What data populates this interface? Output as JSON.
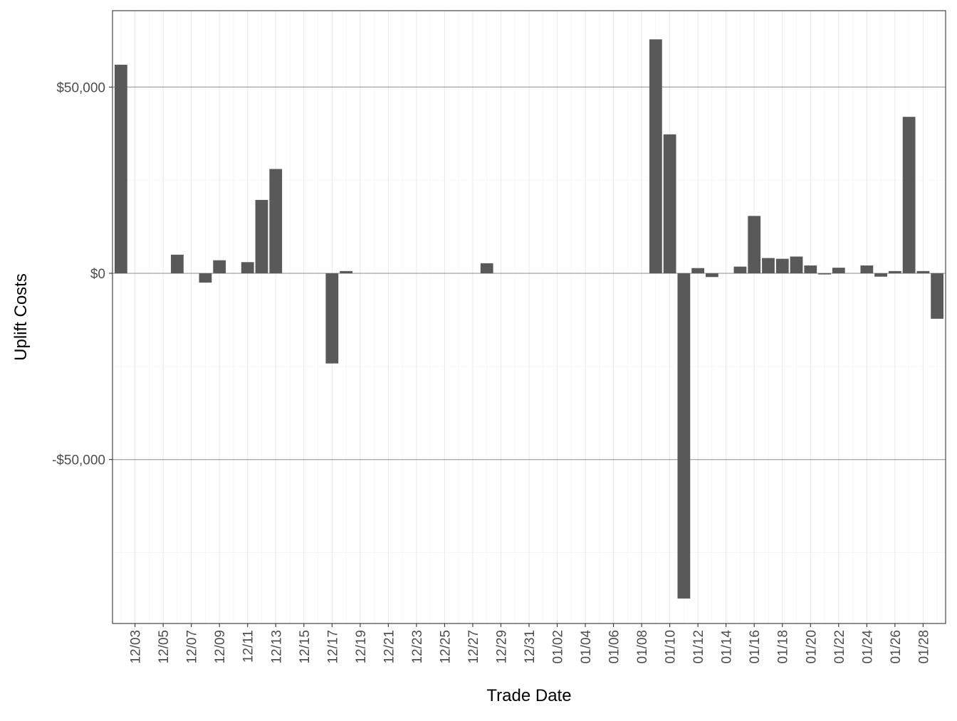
{
  "chart_data": {
    "type": "bar",
    "xlabel": "Trade Date",
    "ylabel": "Uplift Costs",
    "grid": true,
    "ylim": [
      -94000,
      70500
    ],
    "y_ticks": [
      -50000,
      0,
      50000
    ],
    "y_tick_labels": [
      "-$50,000",
      "$0",
      "$50,000"
    ],
    "x_tick_labels": [
      "12/03",
      "12/05",
      "12/07",
      "12/09",
      "12/11",
      "12/13",
      "12/15",
      "12/17",
      "12/19",
      "12/21",
      "12/23",
      "12/25",
      "12/27",
      "12/29",
      "12/31",
      "01/02",
      "01/04",
      "01/06",
      "01/08",
      "01/10",
      "01/12",
      "01/14",
      "01/16",
      "01/18",
      "01/20",
      "01/22",
      "01/24",
      "01/26",
      "01/28"
    ],
    "x": [
      "12/02",
      "12/03",
      "12/04",
      "12/05",
      "12/06",
      "12/07",
      "12/08",
      "12/09",
      "12/10",
      "12/11",
      "12/12",
      "12/13",
      "12/14",
      "12/15",
      "12/16",
      "12/17",
      "12/18",
      "12/19",
      "12/20",
      "12/21",
      "12/22",
      "12/23",
      "12/24",
      "12/25",
      "12/26",
      "12/27",
      "12/28",
      "12/29",
      "12/30",
      "12/31",
      "01/01",
      "01/02",
      "01/03",
      "01/04",
      "01/05",
      "01/06",
      "01/07",
      "01/08",
      "01/09",
      "01/10",
      "01/11",
      "01/12",
      "01/13",
      "01/14",
      "01/15",
      "01/16",
      "01/17",
      "01/18",
      "01/19",
      "01/20",
      "01/21",
      "01/22",
      "01/23",
      "01/24",
      "01/25",
      "01/26",
      "01/27",
      "01/28",
      "01/29"
    ],
    "values": [
      56000,
      0,
      0,
      0,
      5000,
      0,
      -2500,
      3500,
      0,
      3000,
      19700,
      28000,
      0,
      0,
      0,
      -24200,
      600,
      0,
      0,
      0,
      0,
      0,
      0,
      0,
      0,
      0,
      2700,
      0,
      0,
      0,
      0,
      0,
      0,
      0,
      0,
      0,
      0,
      0,
      62800,
      37300,
      -87300,
      1400,
      -1000,
      0,
      1800,
      15400,
      4100,
      3900,
      4500,
      2100,
      -300,
      1500,
      0,
      2100,
      -900,
      600,
      42000,
      600,
      -12200
    ],
    "colors": {
      "bar": "#595959",
      "grid_major": "#ebebeb",
      "grid_minor": "#f4f4f4",
      "ref_line": "#8c8c8c",
      "axis_text": "#4d4d4d",
      "title_text": "#000000"
    }
  }
}
